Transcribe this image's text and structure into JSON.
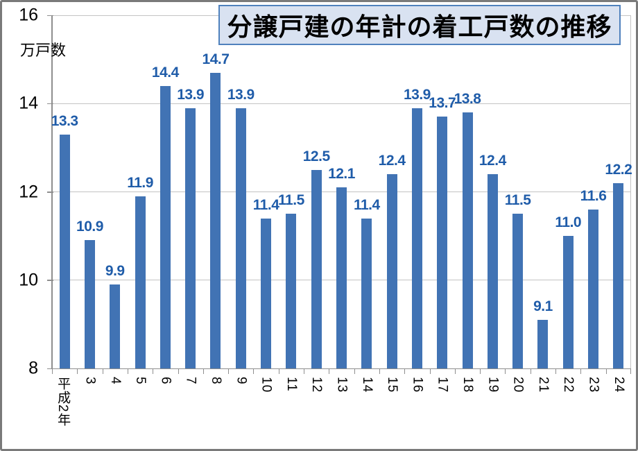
{
  "title": {
    "text": "分譲戸建の年計の着工戸数の推移",
    "fill_color": "#d9e2f1",
    "border_color": "#4f81bd"
  },
  "unit_label": "万戸数",
  "colors": {
    "bar": "#4173b4",
    "data_label": "#1f5ca9",
    "gridline": "#c3c3c3",
    "axis_line": "#8e8e8e",
    "tick_label": "#000000",
    "frame_border": "#7a7a7a",
    "background": "#ffffff"
  },
  "chart_data": {
    "type": "bar",
    "title": "分譲戸建の年計の着工戸数の推移",
    "xlabel": "",
    "ylabel": "万戸数",
    "categories": [
      "平成2年",
      "3",
      "4",
      "5",
      "6",
      "7",
      "8",
      "9",
      "10",
      "11",
      "12",
      "13",
      "14",
      "15",
      "16",
      "17",
      "18",
      "19",
      "20",
      "21",
      "22",
      "23",
      "24"
    ],
    "values": [
      13.3,
      10.9,
      9.9,
      11.9,
      14.4,
      13.9,
      14.7,
      13.9,
      11.4,
      11.5,
      12.5,
      12.1,
      11.4,
      12.4,
      13.9,
      13.7,
      13.8,
      12.4,
      11.5,
      9.1,
      11.0,
      11.6,
      12.2
    ],
    "data_labels": [
      "13.3",
      "10.9",
      "9.9",
      "11.9",
      "14.4",
      "13.9",
      "14.7",
      "13.9",
      "11.4",
      "11.5",
      "12.5",
      "12.1",
      "11.4",
      "12.4",
      "13.9",
      "13.7",
      "13.8",
      "12.4",
      "11.5",
      "9.1",
      "11.0",
      "11.6",
      "12.2"
    ],
    "yticks": [
      8,
      10,
      12,
      14,
      16
    ],
    "ylim": [
      8,
      16
    ],
    "grid": true,
    "legend": false,
    "x_labels_rotated_vertical": true
  }
}
